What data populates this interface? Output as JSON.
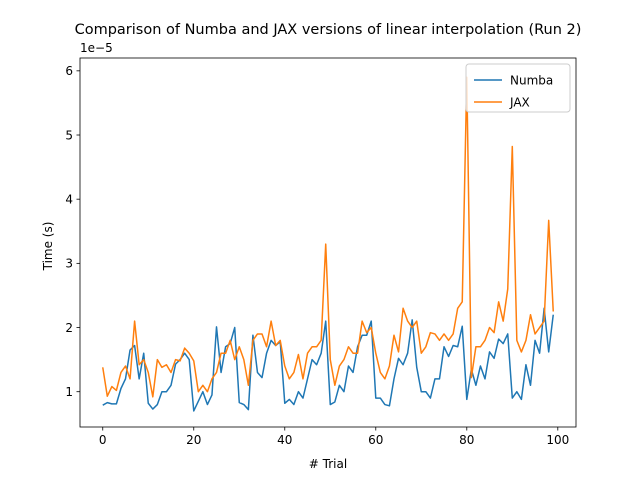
{
  "chart_data": {
    "type": "line",
    "title": "Comparison of Numba and JAX versions of linear interpolation (Run 2)",
    "xlabel": "# Trial",
    "ylabel": "Time (s)",
    "y_offset_label": "1e−5",
    "xlim": [
      -5,
      104
    ],
    "ylim": [
      0.45,
      6.2
    ],
    "y_scale_note": "values in units of 1e-5 s",
    "xticks": [
      0,
      20,
      40,
      60,
      80,
      100
    ],
    "xtick_labels": [
      "0",
      "20",
      "40",
      "60",
      "80",
      "100"
    ],
    "yticks": [
      1,
      2,
      3,
      4,
      5,
      6
    ],
    "ytick_labels": [
      "1",
      "2",
      "3",
      "4",
      "5",
      "6"
    ],
    "grid": false,
    "legend_position": "upper-right",
    "series": [
      {
        "name": "Numba",
        "color": "#1f77b4",
        "values": [
          0.79,
          0.83,
          0.81,
          0.81,
          1.05,
          1.2,
          1.65,
          1.72,
          1.2,
          1.6,
          0.82,
          0.73,
          0.8,
          1.0,
          1.0,
          1.1,
          1.43,
          1.5,
          1.6,
          1.5,
          0.7,
          0.85,
          1.0,
          0.8,
          0.95,
          2.01,
          1.3,
          1.7,
          1.75,
          2.0,
          0.83,
          0.8,
          0.72,
          1.88,
          1.3,
          1.22,
          1.6,
          1.8,
          1.72,
          1.78,
          0.82,
          0.88,
          0.8,
          1.0,
          0.9,
          1.2,
          1.5,
          1.42,
          1.6,
          2.1,
          0.8,
          0.84,
          1.1,
          1.0,
          1.4,
          1.3,
          1.7,
          1.88,
          1.88,
          2.1,
          0.9,
          0.9,
          0.8,
          0.78,
          1.2,
          1.52,
          1.42,
          1.6,
          2.12,
          1.38,
          1.0,
          1.0,
          0.9,
          1.2,
          1.2,
          1.7,
          1.55,
          1.72,
          1.7,
          2.02,
          0.88,
          1.35,
          1.1,
          1.4,
          1.2,
          1.62,
          1.52,
          1.82,
          1.75,
          1.9,
          0.9,
          1.0,
          0.88,
          1.42,
          1.1,
          1.8,
          1.6,
          2.3,
          1.62,
          2.2
        ]
      },
      {
        "name": "JAX",
        "color": "#ff7f0e",
        "values": [
          1.38,
          0.93,
          1.08,
          1.02,
          1.3,
          1.4,
          1.2,
          2.1,
          1.42,
          1.5,
          1.3,
          0.92,
          1.5,
          1.38,
          1.42,
          1.3,
          1.5,
          1.48,
          1.68,
          1.6,
          1.48,
          1.0,
          1.1,
          1.0,
          1.2,
          1.3,
          1.6,
          1.6,
          1.8,
          1.5,
          1.7,
          1.5,
          1.1,
          1.8,
          1.9,
          1.9,
          1.7,
          2.1,
          1.72,
          1.8,
          1.4,
          1.2,
          1.3,
          1.58,
          1.2,
          1.6,
          1.7,
          1.7,
          1.8,
          3.3,
          1.5,
          1.1,
          1.4,
          1.5,
          1.7,
          1.6,
          1.6,
          2.1,
          1.92,
          2.0,
          1.6,
          1.3,
          1.2,
          1.4,
          1.88,
          1.62,
          2.3,
          2.1,
          2.0,
          2.1,
          1.6,
          1.7,
          1.92,
          1.9,
          1.8,
          1.9,
          1.8,
          1.9,
          2.3,
          2.4,
          5.9,
          1.22,
          1.7,
          1.7,
          1.8,
          2.0,
          1.92,
          2.4,
          2.1,
          2.6,
          4.82,
          1.8,
          1.62,
          1.8,
          2.2,
          1.9,
          2.0,
          2.1,
          3.67,
          2.25
        ]
      }
    ]
  }
}
